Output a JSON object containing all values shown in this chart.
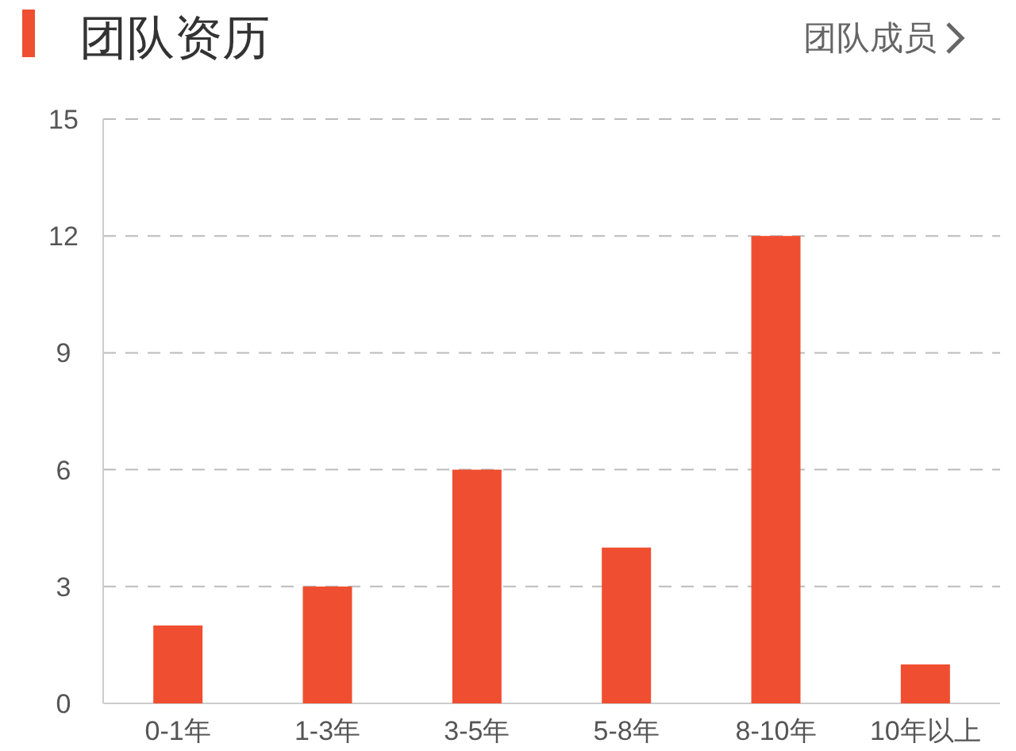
{
  "chart_data": {
    "type": "bar",
    "title": "团队资历",
    "annotations": [
      "团队成员"
    ],
    "categories": [
      "0-1年",
      "1-3年",
      "3-5年",
      "5-8年",
      "8-10年",
      "10年以上"
    ],
    "values": [
      2,
      3,
      6,
      4,
      12,
      1
    ],
    "color": "#f04e30",
    "ylim": [
      0,
      15
    ],
    "yticks": [
      0,
      3,
      6,
      9,
      12,
      15
    ],
    "grid": "y"
  }
}
